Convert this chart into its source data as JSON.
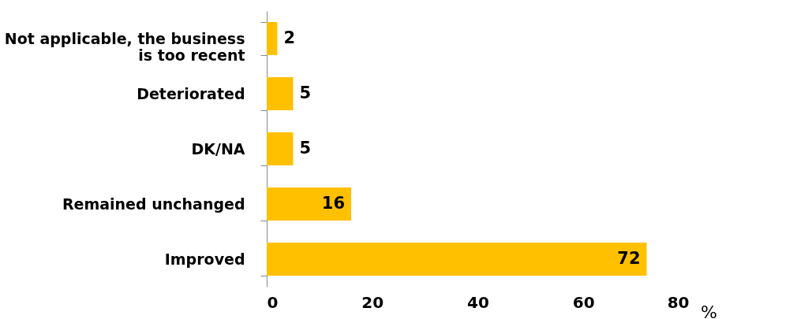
{
  "chart_data": {
    "type": "bar",
    "orientation": "horizontal",
    "categories": [
      "Not applicable, the business is too recent",
      "Deteriorated",
      "DK/NA",
      "Remained unchanged",
      "Improved"
    ],
    "values": [
      2,
      5,
      5,
      16,
      72
    ],
    "color": "#ffc000",
    "xlim": [
      0,
      80
    ],
    "xticks": [
      0,
      20,
      40,
      60,
      80
    ],
    "xlabel": "%",
    "data_labels": true,
    "grid": false
  }
}
